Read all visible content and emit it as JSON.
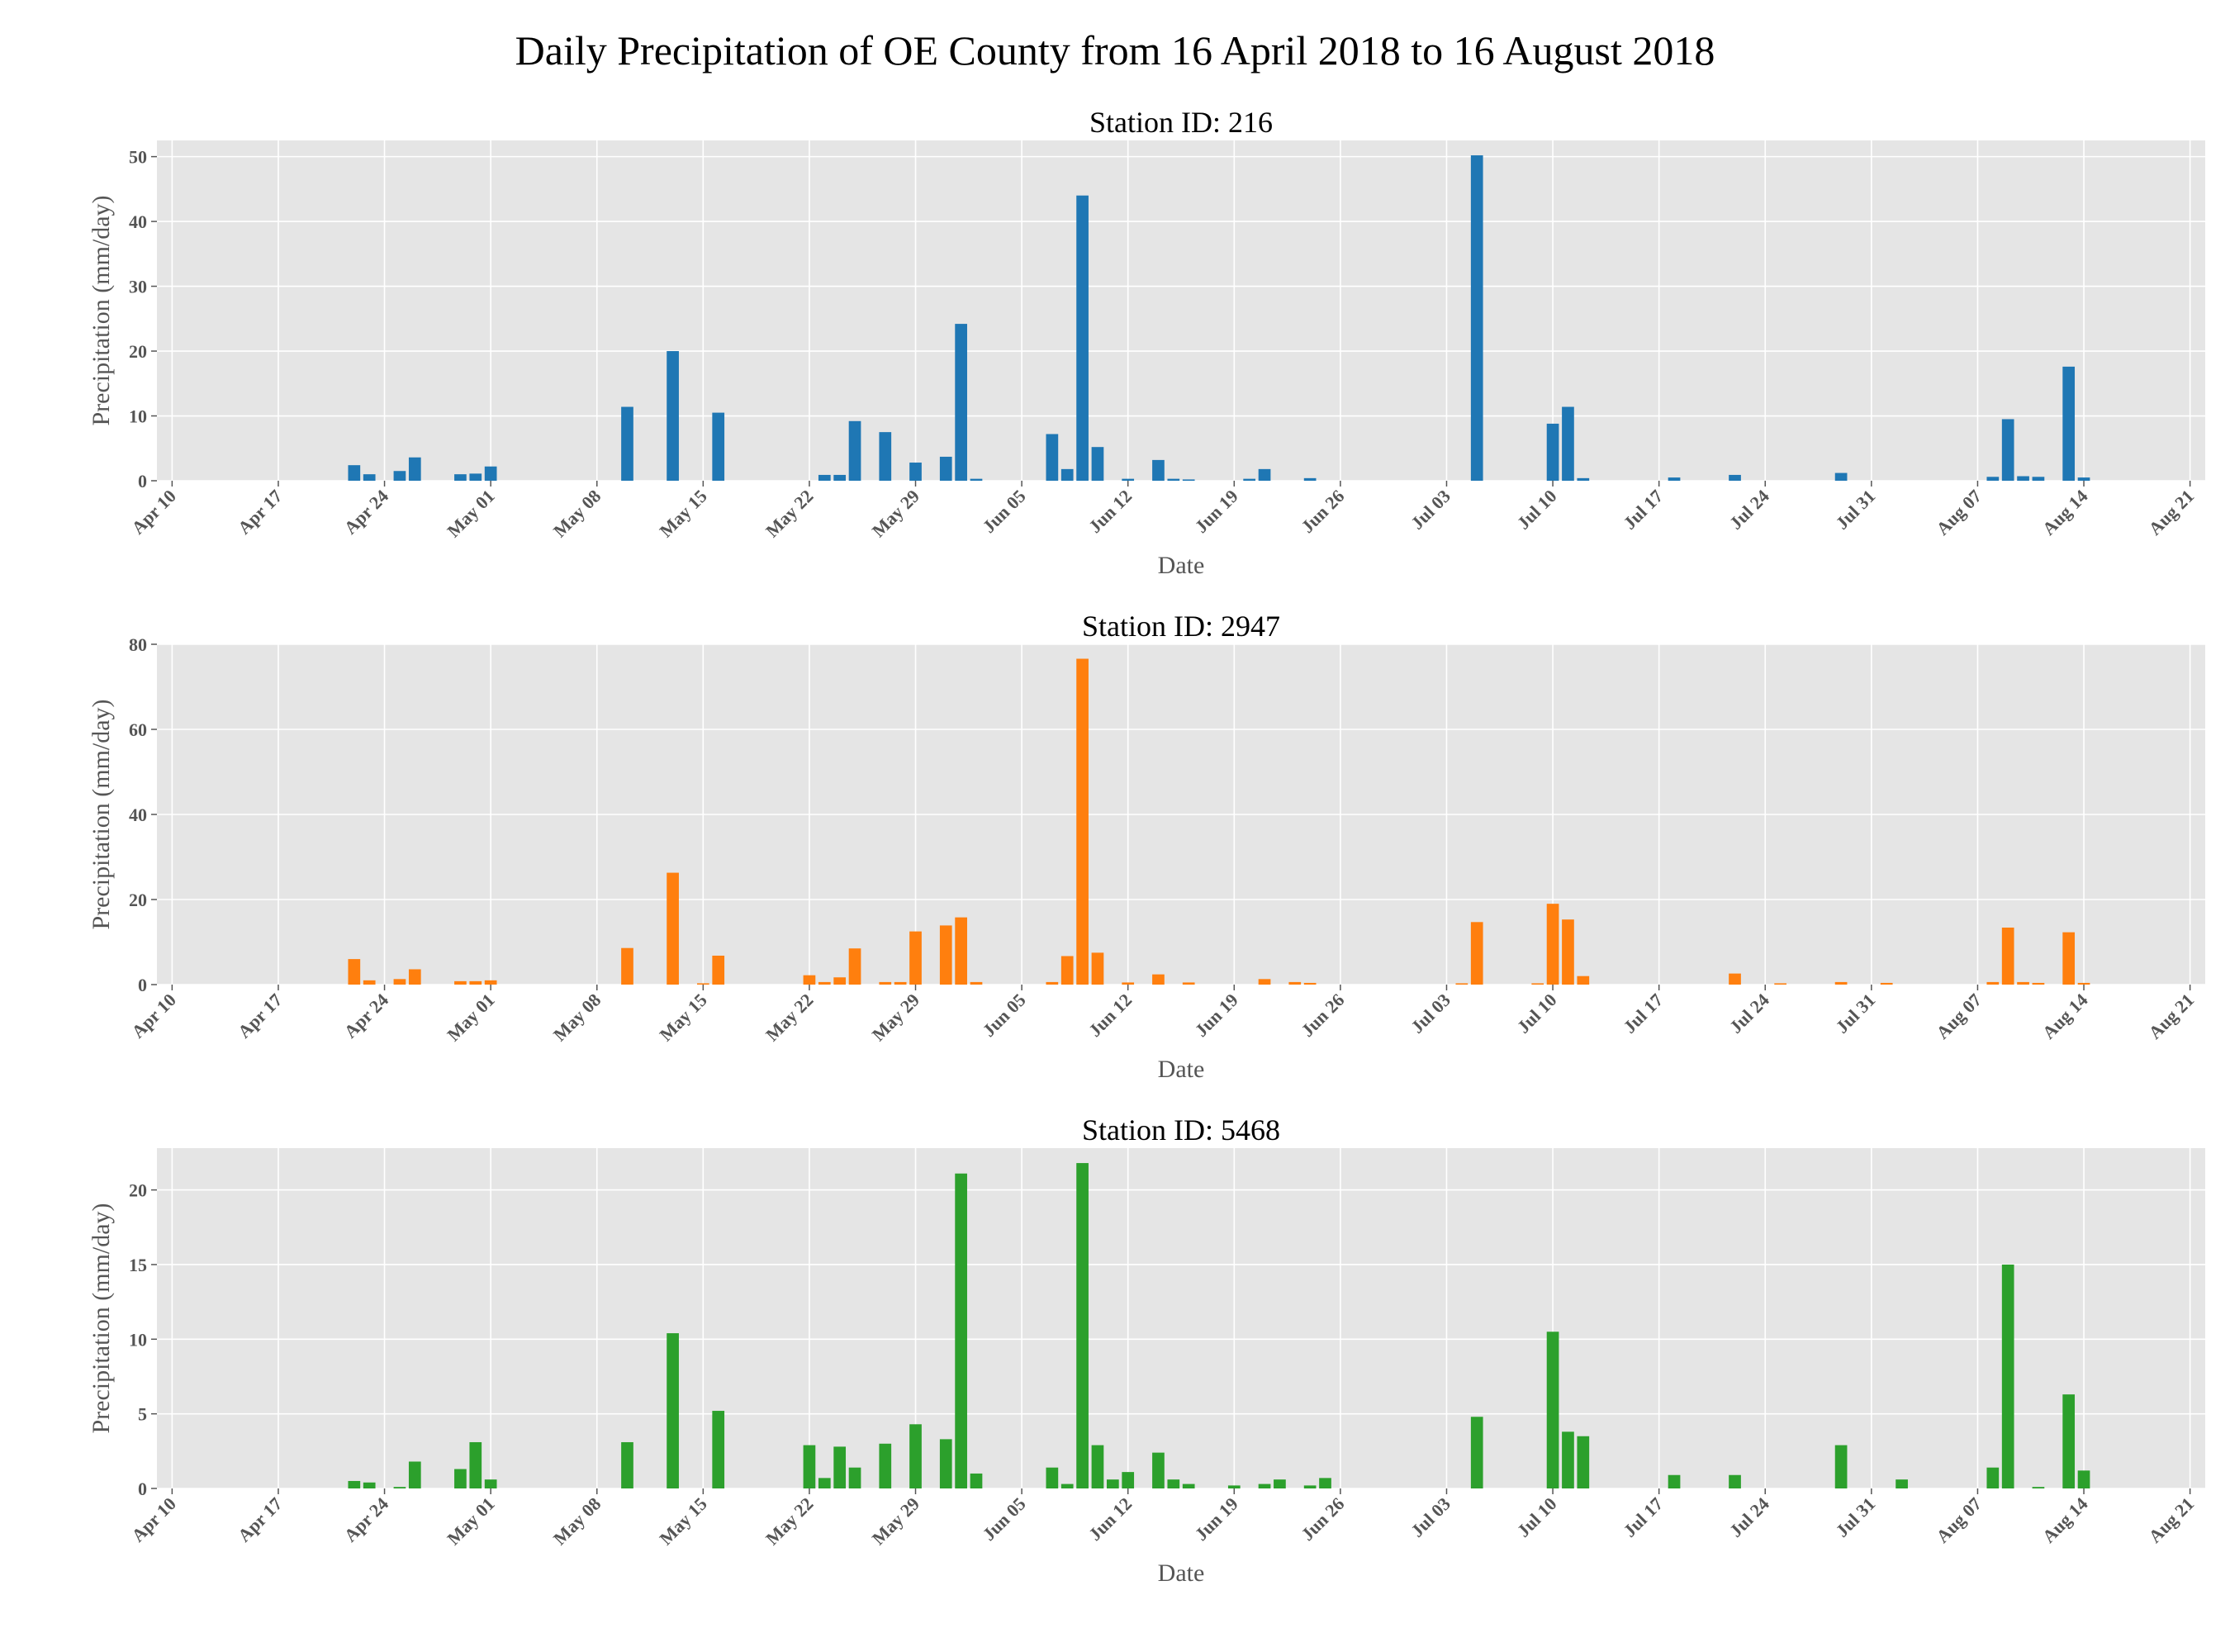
{
  "figure_title": "Daily Precipitation of OE County from 16 April 2018 to 16 August 2018",
  "chart_data": [
    {
      "type": "bar",
      "title": "Station ID: 216",
      "xlabel": "Date",
      "ylabel": "Precipitation (mm/day)",
      "color": "#1f77b4",
      "xlim": [
        "2018-04-09",
        "2018-08-22"
      ],
      "ylim": [
        0,
        52.5
      ],
      "yticks": [
        0,
        10,
        20,
        30,
        40,
        50
      ],
      "xticks": [
        "2018-04-10",
        "2018-04-17",
        "2018-04-24",
        "2018-05-01",
        "2018-05-08",
        "2018-05-15",
        "2018-05-22",
        "2018-05-29",
        "2018-06-05",
        "2018-06-12",
        "2018-06-19",
        "2018-06-26",
        "2018-07-03",
        "2018-07-10",
        "2018-07-17",
        "2018-07-24",
        "2018-07-31",
        "2018-08-07",
        "2018-08-14",
        "2018-08-21"
      ],
      "xticklabels": [
        "Apr 10",
        "Apr 17",
        "Apr 24",
        "May 01",
        "May 08",
        "May 15",
        "May 22",
        "May 29",
        "Jun 05",
        "Jun 12",
        "Jun 19",
        "Jun 26",
        "Jul 03",
        "Jul 10",
        "Jul 17",
        "Jul 24",
        "Jul 31",
        "Aug 07",
        "Aug 14",
        "Aug 21"
      ],
      "grid": true,
      "x": [
        "2018-04-22",
        "2018-04-23",
        "2018-04-25",
        "2018-04-26",
        "2018-04-29",
        "2018-04-30",
        "2018-05-01",
        "2018-05-10",
        "2018-05-13",
        "2018-05-16",
        "2018-05-23",
        "2018-05-24",
        "2018-05-25",
        "2018-05-27",
        "2018-05-29",
        "2018-05-31",
        "2018-06-01",
        "2018-06-02",
        "2018-06-07",
        "2018-06-08",
        "2018-06-09",
        "2018-06-10",
        "2018-06-12",
        "2018-06-14",
        "2018-06-15",
        "2018-06-16",
        "2018-06-20",
        "2018-06-21",
        "2018-06-24",
        "2018-07-05",
        "2018-07-10",
        "2018-07-11",
        "2018-07-12",
        "2018-07-18",
        "2018-07-22",
        "2018-07-29",
        "2018-08-08",
        "2018-08-09",
        "2018-08-10",
        "2018-08-11",
        "2018-08-13",
        "2018-08-14"
      ],
      "values": [
        2.4,
        1.0,
        1.5,
        3.6,
        1.0,
        1.1,
        2.2,
        11.4,
        20.0,
        10.5,
        0.9,
        0.9,
        9.2,
        7.5,
        2.8,
        3.7,
        24.2,
        0.3,
        7.2,
        1.8,
        44.0,
        5.2,
        0.3,
        3.2,
        0.3,
        0.2,
        0.3,
        1.8,
        0.4,
        50.2,
        8.8,
        11.4,
        0.4,
        0.5,
        0.9,
        1.2,
        0.6,
        9.5,
        0.7,
        0.6,
        17.6,
        0.5
      ]
    },
    {
      "type": "bar",
      "title": "Station ID: 2947",
      "xlabel": "Date",
      "ylabel": "Precipitation (mm/day)",
      "color": "#ff7f0e",
      "xlim": [
        "2018-04-09",
        "2018-08-22"
      ],
      "ylim": [
        0,
        80
      ],
      "yticks": [
        0,
        20,
        40,
        60,
        80
      ],
      "xticks": [
        "2018-04-10",
        "2018-04-17",
        "2018-04-24",
        "2018-05-01",
        "2018-05-08",
        "2018-05-15",
        "2018-05-22",
        "2018-05-29",
        "2018-06-05",
        "2018-06-12",
        "2018-06-19",
        "2018-06-26",
        "2018-07-03",
        "2018-07-10",
        "2018-07-17",
        "2018-07-24",
        "2018-07-31",
        "2018-08-07",
        "2018-08-14",
        "2018-08-21"
      ],
      "xticklabels": [
        "Apr 10",
        "Apr 17",
        "Apr 24",
        "May 01",
        "May 08",
        "May 15",
        "May 22",
        "May 29",
        "Jun 05",
        "Jun 12",
        "Jun 19",
        "Jun 26",
        "Jul 03",
        "Jul 10",
        "Jul 17",
        "Jul 24",
        "Jul 31",
        "Aug 07",
        "Aug 14",
        "Aug 21"
      ],
      "grid": true,
      "x": [
        "2018-04-22",
        "2018-04-23",
        "2018-04-25",
        "2018-04-26",
        "2018-04-29",
        "2018-04-30",
        "2018-05-01",
        "2018-05-10",
        "2018-05-13",
        "2018-05-15",
        "2018-05-16",
        "2018-05-22",
        "2018-05-23",
        "2018-05-24",
        "2018-05-25",
        "2018-05-27",
        "2018-05-28",
        "2018-05-29",
        "2018-05-31",
        "2018-06-01",
        "2018-06-02",
        "2018-06-07",
        "2018-06-08",
        "2018-06-09",
        "2018-06-10",
        "2018-06-12",
        "2018-06-14",
        "2018-06-16",
        "2018-06-21",
        "2018-06-23",
        "2018-06-24",
        "2018-07-04",
        "2018-07-05",
        "2018-07-09",
        "2018-07-10",
        "2018-07-11",
        "2018-07-12",
        "2018-07-22",
        "2018-07-25",
        "2018-07-29",
        "2018-08-01",
        "2018-08-08",
        "2018-08-09",
        "2018-08-10",
        "2018-08-11",
        "2018-08-13",
        "2018-08-14"
      ],
      "values": [
        6.0,
        1.0,
        1.3,
        3.6,
        0.8,
        0.8,
        1.0,
        8.6,
        26.3,
        0.3,
        6.8,
        2.2,
        0.6,
        1.7,
        8.5,
        0.6,
        0.6,
        12.5,
        13.9,
        15.8,
        0.6,
        0.6,
        6.7,
        76.6,
        7.5,
        0.5,
        2.4,
        0.5,
        1.3,
        0.6,
        0.4,
        0.3,
        14.7,
        0.3,
        19.0,
        15.3,
        2.0,
        2.6,
        0.3,
        0.6,
        0.4,
        0.6,
        13.4,
        0.6,
        0.4,
        12.3,
        0.4
      ]
    },
    {
      "type": "bar",
      "title": "Station ID: 5468",
      "xlabel": "Date",
      "ylabel": "Precipitation (mm/day)",
      "color": "#2ca02c",
      "xlim": [
        "2018-04-09",
        "2018-08-22"
      ],
      "ylim": [
        0,
        22.8
      ],
      "yticks": [
        0,
        5,
        10,
        15,
        20
      ],
      "xticks": [
        "2018-04-10",
        "2018-04-17",
        "2018-04-24",
        "2018-05-01",
        "2018-05-08",
        "2018-05-15",
        "2018-05-22",
        "2018-05-29",
        "2018-06-05",
        "2018-06-12",
        "2018-06-19",
        "2018-06-26",
        "2018-07-03",
        "2018-07-10",
        "2018-07-17",
        "2018-07-24",
        "2018-07-31",
        "2018-08-07",
        "2018-08-14",
        "2018-08-21"
      ],
      "xticklabels": [
        "Apr 10",
        "Apr 17",
        "Apr 24",
        "May 01",
        "May 08",
        "May 15",
        "May 22",
        "May 29",
        "Jun 05",
        "Jun 12",
        "Jun 19",
        "Jun 26",
        "Jul 03",
        "Jul 10",
        "Jul 17",
        "Jul 24",
        "Jul 31",
        "Aug 07",
        "Aug 14",
        "Aug 21"
      ],
      "grid": true,
      "x": [
        "2018-04-22",
        "2018-04-23",
        "2018-04-25",
        "2018-04-26",
        "2018-04-29",
        "2018-04-30",
        "2018-05-01",
        "2018-05-10",
        "2018-05-13",
        "2018-05-16",
        "2018-05-22",
        "2018-05-23",
        "2018-05-24",
        "2018-05-25",
        "2018-05-27",
        "2018-05-29",
        "2018-05-31",
        "2018-06-01",
        "2018-06-02",
        "2018-06-07",
        "2018-06-08",
        "2018-06-09",
        "2018-06-10",
        "2018-06-11",
        "2018-06-12",
        "2018-06-14",
        "2018-06-15",
        "2018-06-16",
        "2018-06-19",
        "2018-06-21",
        "2018-06-22",
        "2018-06-24",
        "2018-06-25",
        "2018-07-05",
        "2018-07-10",
        "2018-07-11",
        "2018-07-12",
        "2018-07-18",
        "2018-07-22",
        "2018-07-29",
        "2018-08-02",
        "2018-08-08",
        "2018-08-09",
        "2018-08-11",
        "2018-08-13",
        "2018-08-14"
      ],
      "values": [
        0.5,
        0.4,
        0.1,
        1.8,
        1.3,
        3.1,
        0.6,
        3.1,
        10.4,
        5.2,
        2.9,
        0.7,
        2.8,
        1.4,
        3.0,
        4.3,
        3.3,
        21.1,
        1.0,
        1.4,
        0.3,
        21.8,
        2.9,
        0.6,
        1.1,
        2.4,
        0.6,
        0.3,
        0.2,
        0.3,
        0.6,
        0.2,
        0.7,
        4.8,
        10.5,
        3.8,
        3.5,
        0.9,
        0.9,
        2.9,
        0.6,
        1.4,
        15.0,
        0.1,
        6.3,
        1.2
      ]
    }
  ]
}
